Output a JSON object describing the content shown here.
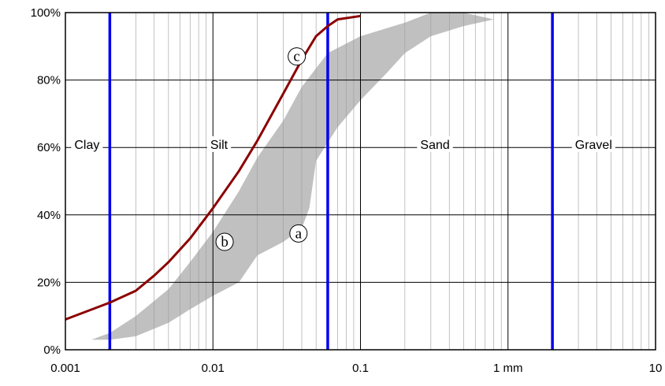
{
  "chart_data": {
    "type": "area",
    "x_scale": "log",
    "xlim": [
      0.001,
      10
    ],
    "ylim": [
      0,
      100
    ],
    "grid": true,
    "x_ticks": [
      {
        "value": 0.001,
        "label": "0.001"
      },
      {
        "value": 0.01,
        "label": "0.01"
      },
      {
        "value": 0.1,
        "label": "0.1"
      },
      {
        "value": 1,
        "label": "1 mm"
      },
      {
        "value": 10,
        "label": "10"
      }
    ],
    "y_ticks": [
      {
        "value": 0,
        "label": "0%"
      },
      {
        "value": 20,
        "label": "20%"
      },
      {
        "value": 40,
        "label": "40%"
      },
      {
        "value": 60,
        "label": "60%"
      },
      {
        "value": 80,
        "label": "80%"
      },
      {
        "value": 100,
        "label": "100%"
      }
    ],
    "boundaries": [
      {
        "x": 0.002,
        "color": "#0000ee"
      },
      {
        "x": 0.06,
        "color": "#0000ee"
      },
      {
        "x": 2,
        "color": "#0000ee"
      }
    ],
    "zones": [
      {
        "label": "Clay",
        "x": 0.0014,
        "y": 61
      },
      {
        "label": "Silt",
        "x": 0.011,
        "y": 61
      },
      {
        "label": "Sand",
        "x": 0.32,
        "y": 61
      },
      {
        "label": "Gravel",
        "x": 3.8,
        "y": 61
      }
    ],
    "band": {
      "color": "#c0c0c0",
      "upper": [
        [
          0.0015,
          3
        ],
        [
          0.002,
          5
        ],
        [
          0.003,
          10
        ],
        [
          0.005,
          18
        ],
        [
          0.007,
          26
        ],
        [
          0.01,
          35
        ],
        [
          0.015,
          47
        ],
        [
          0.02,
          57
        ],
        [
          0.03,
          68
        ],
        [
          0.04,
          78
        ],
        [
          0.06,
          88
        ],
        [
          0.1,
          93
        ],
        [
          0.2,
          97
        ],
        [
          0.3,
          100
        ],
        [
          0.5,
          100
        ],
        [
          0.8,
          98
        ]
      ],
      "lower": [
        [
          0.8,
          98
        ],
        [
          0.5,
          96
        ],
        [
          0.3,
          93
        ],
        [
          0.2,
          88
        ],
        [
          0.15,
          82
        ],
        [
          0.1,
          74
        ],
        [
          0.07,
          66
        ],
        [
          0.05,
          56
        ],
        [
          0.045,
          42
        ],
        [
          0.04,
          36
        ],
        [
          0.03,
          32
        ],
        [
          0.02,
          28
        ],
        [
          0.015,
          20
        ],
        [
          0.01,
          16
        ],
        [
          0.007,
          12
        ],
        [
          0.005,
          8
        ],
        [
          0.003,
          4
        ],
        [
          0.002,
          3
        ],
        [
          0.0015,
          3
        ]
      ]
    },
    "series": [
      {
        "color": "#8b0000",
        "points": [
          [
            0.001,
            9
          ],
          [
            0.002,
            14
          ],
          [
            0.003,
            17.5
          ],
          [
            0.004,
            22
          ],
          [
            0.005,
            26
          ],
          [
            0.007,
            33
          ],
          [
            0.01,
            42
          ],
          [
            0.015,
            53
          ],
          [
            0.02,
            62
          ],
          [
            0.03,
            76
          ],
          [
            0.04,
            86
          ],
          [
            0.05,
            93
          ],
          [
            0.06,
            96
          ],
          [
            0.07,
            98
          ],
          [
            0.1,
            99
          ]
        ]
      }
    ],
    "annotations": [
      {
        "label": "a",
        "x": 0.038,
        "y": 34.5
      },
      {
        "label": "b",
        "x": 0.012,
        "y": 32
      },
      {
        "label": "c",
        "x": 0.037,
        "y": 87
      }
    ]
  }
}
